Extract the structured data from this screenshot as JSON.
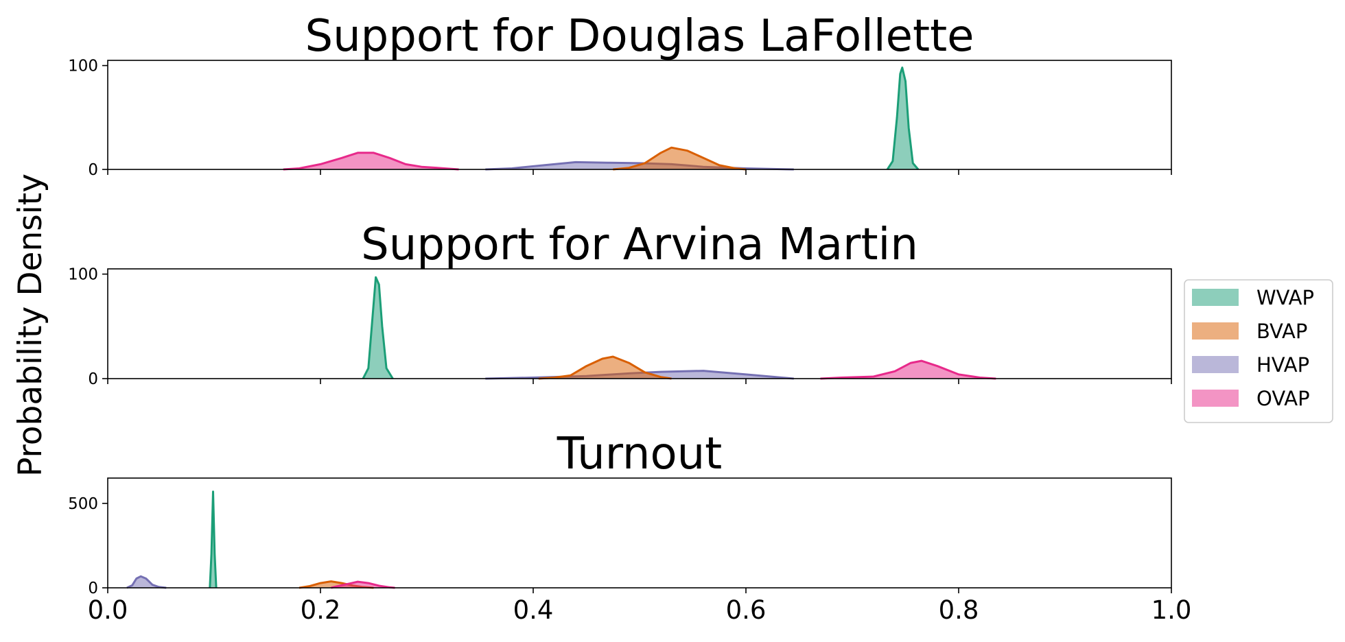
{
  "figure": {
    "ylabel": "Probability Density"
  },
  "colors": {
    "WVAP": "#1b9e77",
    "BVAP": "#d95f02",
    "HVAP": "#7570b3",
    "OVAP": "#e7298a"
  },
  "legend": {
    "placement": "right",
    "entries": [
      "WVAP",
      "BVAP",
      "HVAP",
      "OVAP"
    ]
  },
  "chart_data": [
    {
      "type": "area",
      "title": "Support for Douglas LaFollette",
      "xlim": [
        0,
        1
      ],
      "ylim": [
        0,
        105
      ],
      "yticks": [
        0,
        100
      ],
      "xticks": [
        0.0,
        0.2,
        0.4,
        0.6,
        0.8,
        1.0
      ],
      "show_xtick_labels": false,
      "series": [
        {
          "name": "OVAP",
          "points": [
            [
              0.165,
              0
            ],
            [
              0.18,
              1
            ],
            [
              0.2,
              5
            ],
            [
              0.22,
              11
            ],
            [
              0.235,
              16
            ],
            [
              0.25,
              16
            ],
            [
              0.265,
              11
            ],
            [
              0.28,
              5
            ],
            [
              0.295,
              2.5
            ],
            [
              0.31,
              1.5
            ],
            [
              0.33,
              0
            ]
          ]
        },
        {
          "name": "HVAP",
          "points": [
            [
              0.355,
              0
            ],
            [
              0.38,
              1
            ],
            [
              0.41,
              4
            ],
            [
              0.44,
              7
            ],
            [
              0.47,
              6.5
            ],
            [
              0.5,
              6
            ],
            [
              0.53,
              5
            ],
            [
              0.56,
              2.5
            ],
            [
              0.6,
              1
            ],
            [
              0.645,
              0
            ]
          ]
        },
        {
          "name": "BVAP",
          "points": [
            [
              0.475,
              0
            ],
            [
              0.49,
              1.5
            ],
            [
              0.505,
              6
            ],
            [
              0.52,
              16
            ],
            [
              0.53,
              21
            ],
            [
              0.545,
              18
            ],
            [
              0.56,
              11
            ],
            [
              0.575,
              4
            ],
            [
              0.59,
              1
            ],
            [
              0.6,
              0
            ]
          ]
        },
        {
          "name": "WVAP",
          "points": [
            [
              0.733,
              0
            ],
            [
              0.738,
              8
            ],
            [
              0.742,
              50
            ],
            [
              0.745,
              92
            ],
            [
              0.747,
              98
            ],
            [
              0.75,
              85
            ],
            [
              0.753,
              40
            ],
            [
              0.757,
              6
            ],
            [
              0.762,
              0
            ]
          ]
        }
      ]
    },
    {
      "type": "area",
      "title": "Support for Arvina Martin",
      "xlim": [
        0,
        1
      ],
      "ylim": [
        0,
        105
      ],
      "yticks": [
        0,
        100
      ],
      "xticks": [
        0.0,
        0.2,
        0.4,
        0.6,
        0.8,
        1.0
      ],
      "show_xtick_labels": false,
      "series": [
        {
          "name": "WVAP",
          "points": [
            [
              0.24,
              0
            ],
            [
              0.245,
              10
            ],
            [
              0.249,
              60
            ],
            [
              0.252,
              97
            ],
            [
              0.255,
              90
            ],
            [
              0.258,
              50
            ],
            [
              0.262,
              10
            ],
            [
              0.268,
              0
            ]
          ]
        },
        {
          "name": "HVAP",
          "points": [
            [
              0.355,
              0
            ],
            [
              0.4,
              1
            ],
            [
              0.45,
              2.5
            ],
            [
              0.49,
              5
            ],
            [
              0.52,
              6.5
            ],
            [
              0.56,
              7.5
            ],
            [
              0.6,
              4
            ],
            [
              0.645,
              0
            ]
          ]
        },
        {
          "name": "BVAP",
          "points": [
            [
              0.405,
              0
            ],
            [
              0.42,
              1
            ],
            [
              0.435,
              3
            ],
            [
              0.45,
              12
            ],
            [
              0.465,
              19
            ],
            [
              0.475,
              21
            ],
            [
              0.49,
              15
            ],
            [
              0.505,
              6
            ],
            [
              0.52,
              1.5
            ],
            [
              0.53,
              0
            ]
          ]
        },
        {
          "name": "OVAP",
          "points": [
            [
              0.67,
              0
            ],
            [
              0.69,
              1
            ],
            [
              0.72,
              2
            ],
            [
              0.74,
              7
            ],
            [
              0.755,
              15
            ],
            [
              0.765,
              17
            ],
            [
              0.78,
              12
            ],
            [
              0.8,
              4
            ],
            [
              0.82,
              1
            ],
            [
              0.835,
              0
            ]
          ]
        }
      ]
    },
    {
      "type": "area",
      "title": "Turnout",
      "xlim": [
        0,
        1
      ],
      "ylim": [
        0,
        650
      ],
      "yticks": [
        0,
        500
      ],
      "xticks": [
        0.0,
        0.2,
        0.4,
        0.6,
        0.8,
        1.0
      ],
      "xtick_labels": [
        "0.0",
        "0.2",
        "0.4",
        "0.6",
        "0.8",
        "1.0"
      ],
      "show_xtick_labels": true,
      "series": [
        {
          "name": "HVAP",
          "points": [
            [
              0.018,
              0
            ],
            [
              0.023,
              15
            ],
            [
              0.027,
              55
            ],
            [
              0.031,
              68
            ],
            [
              0.036,
              55
            ],
            [
              0.042,
              18
            ],
            [
              0.048,
              5
            ],
            [
              0.055,
              0
            ]
          ]
        },
        {
          "name": "WVAP",
          "points": [
            [
              0.096,
              0
            ],
            [
              0.0975,
              200
            ],
            [
              0.099,
              570
            ],
            [
              0.1005,
              200
            ],
            [
              0.102,
              0
            ]
          ]
        },
        {
          "name": "BVAP",
          "points": [
            [
              0.18,
              0
            ],
            [
              0.19,
              10
            ],
            [
              0.2,
              28
            ],
            [
              0.21,
              38
            ],
            [
              0.22,
              28
            ],
            [
              0.23,
              14
            ],
            [
              0.24,
              5
            ],
            [
              0.25,
              0
            ]
          ]
        },
        {
          "name": "OVAP",
          "points": [
            [
              0.21,
              0
            ],
            [
              0.215,
              8
            ],
            [
              0.225,
              22
            ],
            [
              0.235,
              36
            ],
            [
              0.245,
              28
            ],
            [
              0.255,
              12
            ],
            [
              0.265,
              3
            ],
            [
              0.27,
              0
            ]
          ]
        }
      ]
    }
  ]
}
